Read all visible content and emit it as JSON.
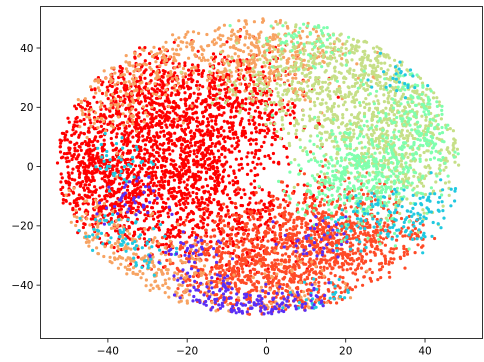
{
  "chart_data": {
    "type": "scatter",
    "title": "",
    "xlabel": "",
    "ylabel": "",
    "xlim": [
      -57,
      54.5
    ],
    "ylim": [
      -58,
      54
    ],
    "x_ticks": [
      -40,
      -20,
      0,
      20,
      40
    ],
    "y_ticks": [
      -40,
      -20,
      0,
      20,
      40
    ],
    "x_tick_labels": [
      "−40",
      "−20",
      "0",
      "20",
      "40"
    ],
    "y_tick_labels": [
      "−40",
      "−20",
      "0",
      "20",
      "40"
    ],
    "grid": false,
    "legend": "none",
    "colormap": "rainbow",
    "point_radius_note": "small dots",
    "cloud_extent": {
      "x_range": [
        -52,
        50
      ],
      "y_range": [
        -52,
        48
      ],
      "center": [
        -2,
        0
      ]
    },
    "series": [
      {
        "color": "#ff0000",
        "values": [
          [
            -45,
            5
          ],
          [
            -42,
            0
          ],
          [
            -40,
            -5
          ],
          [
            -38,
            -10
          ],
          [
            -35,
            -15
          ],
          [
            -32,
            10
          ],
          [
            -30,
            20
          ],
          [
            -28,
            30
          ],
          [
            -25,
            -20
          ],
          [
            -22,
            0
          ],
          [
            -20,
            15
          ],
          [
            -18,
            25
          ],
          [
            -15,
            -10
          ],
          [
            -12,
            5
          ],
          [
            -10,
            20
          ],
          [
            -8,
            -25
          ],
          [
            -5,
            15
          ],
          [
            -2,
            28
          ],
          [
            0,
            -15
          ],
          [
            -48,
            -8
          ],
          [
            -44,
            12
          ],
          [
            -36,
            25
          ],
          [
            -26,
            5
          ],
          [
            -16,
            -5
          ]
        ]
      },
      {
        "color": "#ff4a26",
        "values": [
          [
            -10,
            -30
          ],
          [
            -5,
            -35
          ],
          [
            0,
            -25
          ],
          [
            5,
            -30
          ],
          [
            10,
            -20
          ],
          [
            15,
            -25
          ],
          [
            20,
            -30
          ],
          [
            -15,
            -35
          ],
          [
            25,
            -20
          ],
          [
            5,
            -40
          ],
          [
            12,
            -38
          ],
          [
            -2,
            -42
          ],
          [
            18,
            -15
          ],
          [
            28,
            -25
          ]
        ]
      },
      {
        "color": "#f7a362",
        "values": [
          [
            -35,
            30
          ],
          [
            -25,
            35
          ],
          [
            -15,
            38
          ],
          [
            -5,
            40
          ],
          [
            5,
            42
          ],
          [
            -40,
            20
          ],
          [
            -45,
            -20
          ],
          [
            -38,
            -30
          ],
          [
            -30,
            -35
          ],
          [
            10,
            35
          ],
          [
            0,
            38
          ],
          [
            -20,
            -40
          ],
          [
            8,
            -45
          ]
        ]
      },
      {
        "color": "#c6df87",
        "values": [
          [
            15,
            40
          ],
          [
            25,
            42
          ],
          [
            20,
            30
          ],
          [
            30,
            35
          ],
          [
            35,
            20
          ],
          [
            25,
            10
          ],
          [
            15,
            20
          ],
          [
            40,
            15
          ],
          [
            45,
            5
          ],
          [
            38,
            -5
          ],
          [
            30,
            0
          ],
          [
            22,
            5
          ],
          [
            10,
            25
          ],
          [
            0,
            30
          ],
          [
            28,
            25
          ],
          [
            42,
            28
          ]
        ]
      },
      {
        "color": "#7fffae",
        "values": [
          [
            20,
            0
          ],
          [
            30,
            5
          ],
          [
            35,
            10
          ],
          [
            28,
            -5
          ],
          [
            18,
            -5
          ],
          [
            40,
            25
          ],
          [
            12,
            45
          ],
          [
            45,
            18
          ],
          [
            25,
            -12
          ]
        ]
      },
      {
        "color": "#21c9e0",
        "values": [
          [
            30,
            -15
          ],
          [
            38,
            -20
          ],
          [
            20,
            -20
          ],
          [
            -40,
            -22
          ],
          [
            -36,
            2
          ],
          [
            35,
            32
          ],
          [
            15,
            -45
          ],
          [
            42,
            -12
          ],
          [
            -30,
            -28
          ]
        ]
      },
      {
        "color": "#5a2ef5",
        "values": [
          [
            -10,
            -45
          ],
          [
            -5,
            -48
          ],
          [
            0,
            -50
          ],
          [
            5,
            -50
          ],
          [
            10,
            -48
          ],
          [
            -15,
            -42
          ],
          [
            -20,
            -30
          ],
          [
            -35,
            -12
          ],
          [
            12,
            -25
          ]
        ]
      }
    ]
  }
}
